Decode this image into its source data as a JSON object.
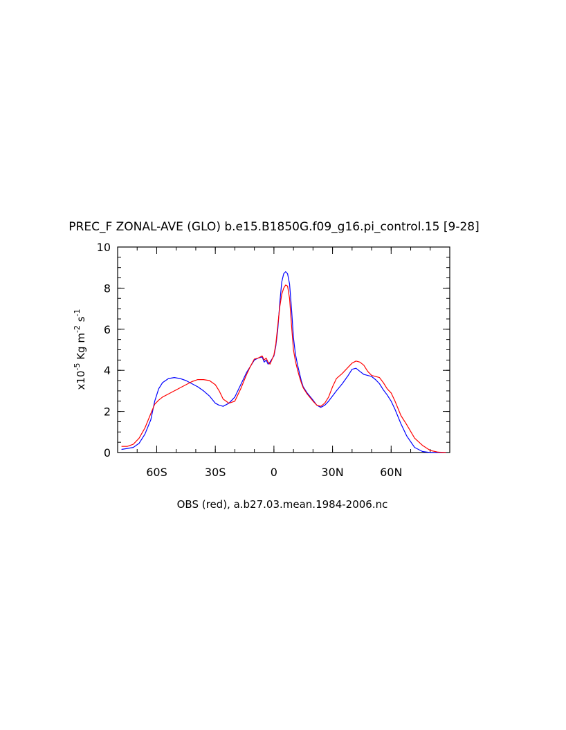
{
  "chart_data": {
    "type": "line",
    "title": "PREC_F ZONAL-AVE (GLO) b.e15.B1850G.f09_g16.pi_control.15 [9-28]",
    "xlabel": "OBS (red), a.b27.03.mean.1984-2006.nc",
    "ylabel": {
      "prefix": "x10",
      "exp1": "-5",
      "mid": " Kg m",
      "exp2": "-2",
      "mid2": " s",
      "exp3": "-1"
    },
    "xlim": [
      -80,
      90
    ],
    "ylim": [
      0,
      10
    ],
    "x_ticks": [
      {
        "value": -60,
        "label": "60S"
      },
      {
        "value": -30,
        "label": "30S"
      },
      {
        "value": 0,
        "label": "0"
      },
      {
        "value": 30,
        "label": "30N"
      },
      {
        "value": 60,
        "label": "60N"
      }
    ],
    "y_ticks": [
      {
        "value": 0,
        "label": "0"
      },
      {
        "value": 2,
        "label": "2"
      },
      {
        "value": 4,
        "label": "4"
      },
      {
        "value": 6,
        "label": "6"
      },
      {
        "value": 8,
        "label": "8"
      },
      {
        "value": 10,
        "label": "10"
      }
    ],
    "series": [
      {
        "color": "#0000ff",
        "x": [
          -78,
          -75,
          -72,
          -69,
          -66,
          -63,
          -61,
          -59,
          -57,
          -54,
          -51,
          -48,
          -45,
          -42,
          -39,
          -36,
          -33,
          -30,
          -28,
          -26,
          -23,
          -20,
          -17,
          -14,
          -12,
          -10,
          -8,
          -6,
          -5,
          -4,
          -3,
          -2,
          0,
          1,
          2,
          3,
          4,
          5,
          6,
          7,
          8,
          9,
          10,
          11,
          12,
          13,
          14,
          15,
          17,
          20,
          22,
          24,
          26,
          28,
          30,
          32,
          35,
          38,
          40,
          42,
          44,
          46,
          48,
          50,
          52,
          54,
          56,
          58,
          60,
          62,
          65,
          68,
          72,
          76,
          80,
          84,
          88
        ],
        "y": [
          0.15,
          0.2,
          0.25,
          0.45,
          0.9,
          1.6,
          2.5,
          3.1,
          3.4,
          3.6,
          3.65,
          3.6,
          3.5,
          3.35,
          3.2,
          3.0,
          2.75,
          2.4,
          2.3,
          2.25,
          2.4,
          2.7,
          3.3,
          3.9,
          4.2,
          4.5,
          4.6,
          4.65,
          4.4,
          4.5,
          4.3,
          4.4,
          4.7,
          5.2,
          6.0,
          7.3,
          8.3,
          8.7,
          8.8,
          8.7,
          8.2,
          7.0,
          5.6,
          4.8,
          4.3,
          3.9,
          3.5,
          3.2,
          2.9,
          2.55,
          2.3,
          2.2,
          2.3,
          2.5,
          2.75,
          3.0,
          3.35,
          3.75,
          4.05,
          4.1,
          3.95,
          3.8,
          3.75,
          3.7,
          3.55,
          3.35,
          3.05,
          2.8,
          2.5,
          2.1,
          1.4,
          0.8,
          0.25,
          0.05,
          0.0,
          0.0,
          0.0
        ]
      },
      {
        "color": "#ff0000",
        "x": [
          -78,
          -75,
          -72,
          -69,
          -66,
          -63,
          -61,
          -59,
          -57,
          -54,
          -51,
          -48,
          -45,
          -42,
          -39,
          -36,
          -33,
          -30,
          -28,
          -26,
          -23,
          -20,
          -17,
          -14,
          -12,
          -10,
          -8,
          -6,
          -5,
          -4,
          -3,
          -2,
          0,
          1,
          2,
          3,
          4,
          5,
          6,
          7,
          8,
          9,
          10,
          11,
          12,
          13,
          14,
          15,
          17,
          20,
          22,
          24,
          26,
          28,
          30,
          32,
          35,
          38,
          40,
          42,
          44,
          46,
          48,
          50,
          52,
          54,
          56,
          58,
          60,
          62,
          65,
          68,
          72,
          76,
          80,
          84,
          88
        ],
        "y": [
          0.3,
          0.3,
          0.4,
          0.7,
          1.2,
          1.9,
          2.35,
          2.55,
          2.7,
          2.85,
          3.0,
          3.15,
          3.3,
          3.45,
          3.55,
          3.55,
          3.5,
          3.3,
          3.0,
          2.6,
          2.4,
          2.5,
          3.1,
          3.8,
          4.2,
          4.55,
          4.6,
          4.7,
          4.5,
          4.6,
          4.4,
          4.3,
          4.75,
          5.3,
          6.2,
          7.1,
          7.7,
          8.0,
          8.15,
          8.1,
          7.5,
          6.2,
          5.0,
          4.45,
          4.05,
          3.7,
          3.4,
          3.15,
          2.85,
          2.5,
          2.3,
          2.25,
          2.4,
          2.7,
          3.2,
          3.6,
          3.85,
          4.15,
          4.35,
          4.45,
          4.4,
          4.25,
          3.95,
          3.75,
          3.7,
          3.65,
          3.4,
          3.1,
          2.9,
          2.5,
          1.8,
          1.35,
          0.7,
          0.35,
          0.1,
          0.02,
          0.0
        ]
      }
    ]
  }
}
